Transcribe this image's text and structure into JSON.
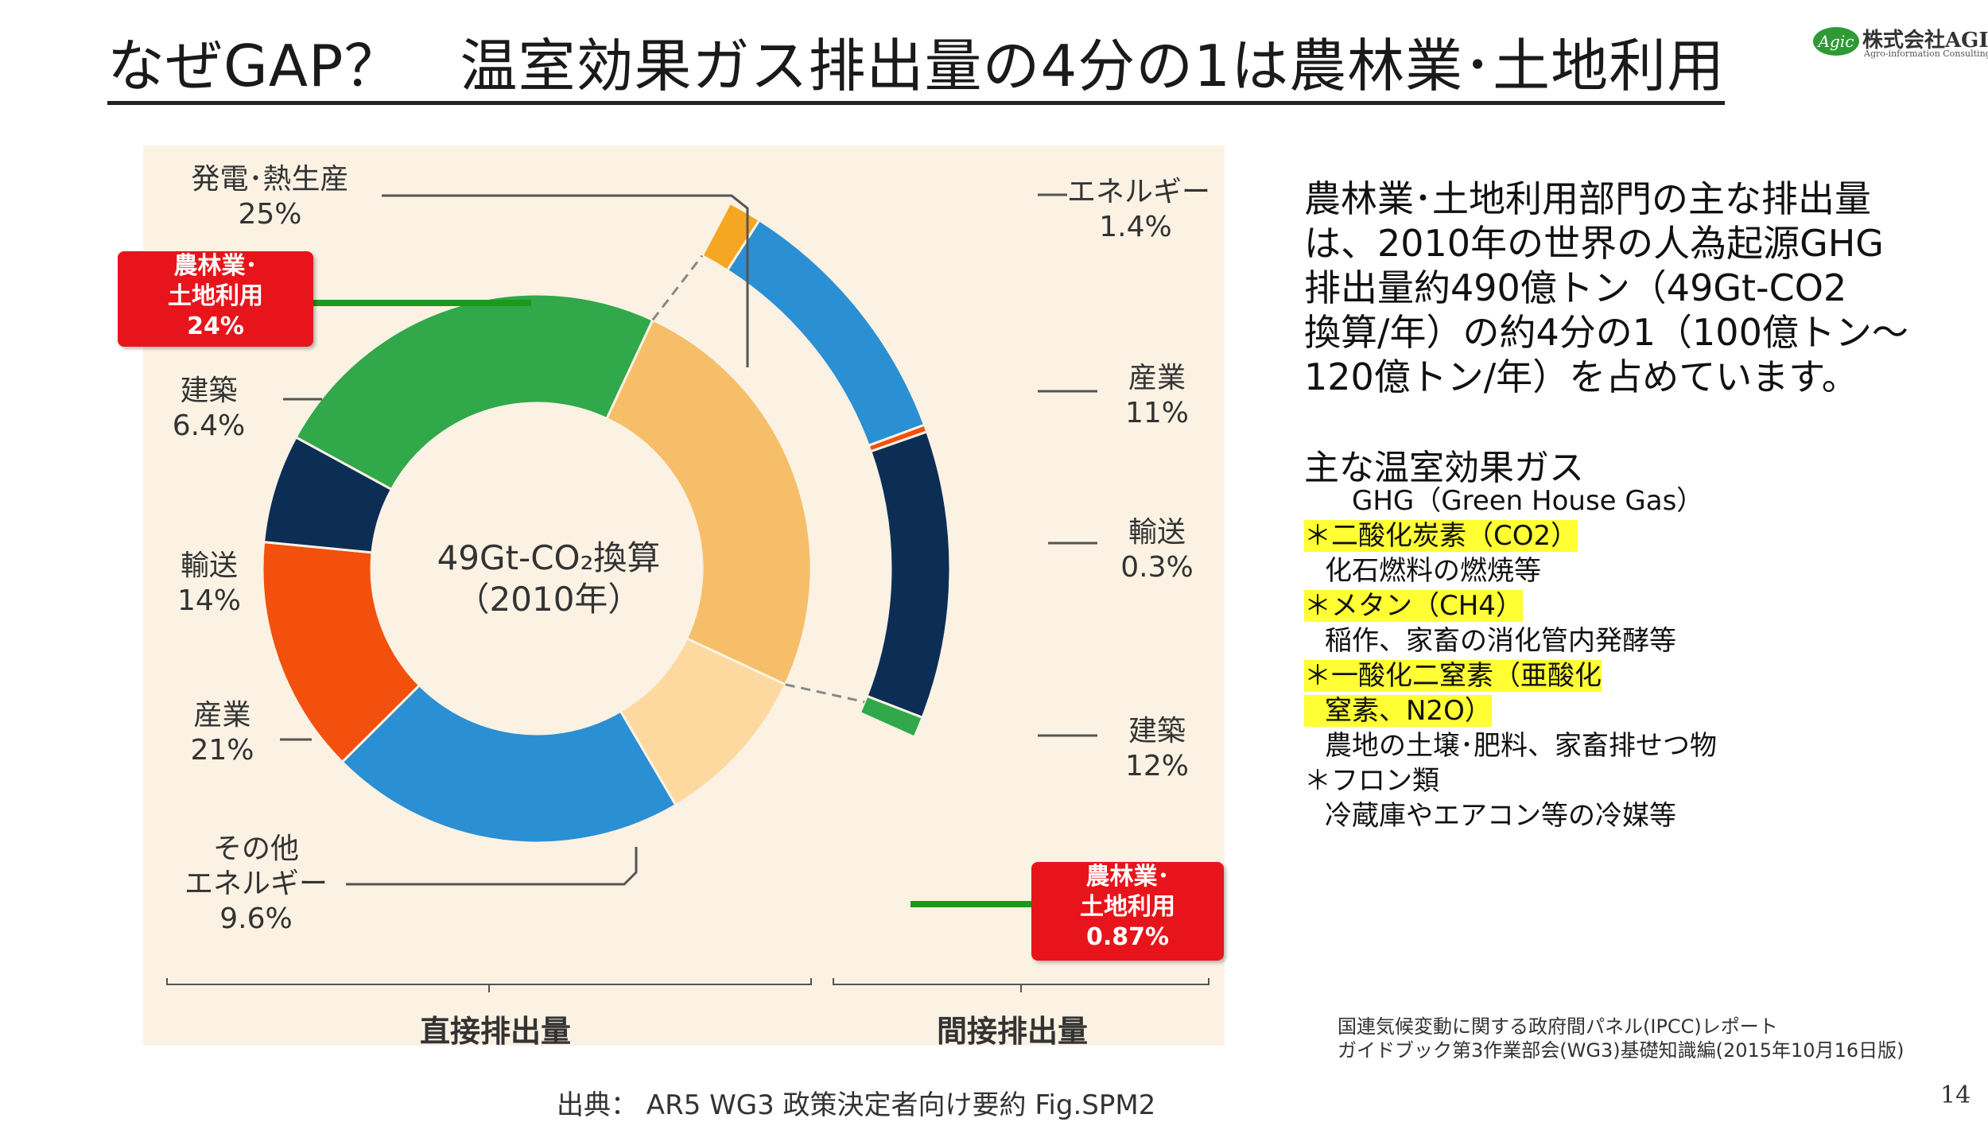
{
  "slide": {
    "title": "なぜGAP？　温室効果ガス排出量の4分の1は農林業･土地利用",
    "logo_name": "株式会社AGIC",
    "logo_badge": "Agic",
    "logo_subtitle": "Agro-information Consulting",
    "page_number": "14"
  },
  "chart_data": {
    "type": "pie",
    "center_label_line1": "49Gt-CO₂換算",
    "center_label_line2": "（2010年）",
    "direct_label": "直接排出量",
    "indirect_label": "間接排出量",
    "source": "出典：  AR5 WG3 政策決定者向け要約 Fig.SPM2",
    "direct": [
      {
        "name": "発電･熱生産",
        "display": "25%",
        "value": 25,
        "color": "#f6be68"
      },
      {
        "name": "その他エネルギー",
        "display": "9.6%",
        "value": 9.6,
        "color": "#fdd9a0"
      },
      {
        "name": "産業",
        "display": "21%",
        "value": 21,
        "color": "#2b8fd3"
      },
      {
        "name": "輸送",
        "display": "14%",
        "value": 14,
        "color": "#f2500c"
      },
      {
        "name": "建築",
        "display": "6.4%",
        "value": 6.4,
        "color": "#0c2e55"
      },
      {
        "name": "農林業･土地利用",
        "display": "24%",
        "value": 24,
        "color": "#31a84a"
      }
    ],
    "indirect": [
      {
        "name": "エネルギー",
        "display": "1.4%",
        "value": 1.4,
        "color": "#f5a623"
      },
      {
        "name": "産業",
        "display": "11%",
        "value": 11,
        "color": "#2b8fd3"
      },
      {
        "name": "輸送",
        "display": "0.3%",
        "value": 0.3,
        "color": "#f2500c"
      },
      {
        "name": "建築",
        "display": "12%",
        "value": 12,
        "color": "#0c2e55"
      },
      {
        "name": "農林業･土地利用",
        "display": "0.87%",
        "value": 0.87,
        "color": "#31a84a"
      }
    ]
  },
  "labels": {
    "direct_power": {
      "line1": "発電･熱生産",
      "line2": "25%"
    },
    "direct_agri": {
      "line1": "農林業･",
      "line2": "土地利用",
      "line3": "24%"
    },
    "direct_building": {
      "line1": "建築",
      "line2": "6.4%"
    },
    "direct_transport": {
      "line1": "輸送",
      "line2": "14%"
    },
    "direct_industry": {
      "line1": "産業",
      "line2": "21%"
    },
    "direct_other": {
      "line1": "その他",
      "line2": "エネルギー",
      "line3": "9.6%"
    },
    "indirect_energy": {
      "line1": "エネルギー",
      "line2": "1.4%"
    },
    "indirect_industry": {
      "line1": "産業",
      "line2": "11%"
    },
    "indirect_transport": {
      "line1": "輸送",
      "line2": "0.3%"
    },
    "indirect_building": {
      "line1": "建築",
      "line2": "12%"
    },
    "indirect_agri": {
      "line1": "農林業･",
      "line2": "土地利用",
      "line3": "0.87%"
    }
  },
  "description": {
    "line1": "農林業･土地利用部門の主な排出量",
    "line2": "は、2010年の世界の人為起源GHG",
    "line3": "排出量約490億トン（49Gt-CO2",
    "line4": "換算/年）の約4分の1（100億トン～",
    "line5": "120億トン/年）を占めています。"
  },
  "gases": {
    "title": "主な温室効果ガス",
    "subtitle": "GHG（Green House Gas）",
    "co2": "＊二酸化炭素（CO2）",
    "co2_note": "化石燃料の燃焼等",
    "ch4": "＊メタン（CH4）",
    "ch4_note": "稲作、家畜の消化管内発酵等",
    "n2o_line1": "＊一酸化二窒素（亜酸化",
    "n2o_line2": "窒素、N2O）",
    "n2o_note": "農地の土壌･肥料、家畜排せつ物",
    "cfc": "＊フロン類",
    "cfc_note": "冷蔵庫やエアコン等の冷媒等"
  },
  "reference": {
    "line1": "国連気候変動に関する政府間パネル(IPCC)レポート",
    "line2": "ガイドブック第3作業部会(WG3)基礎知識編(2015年10月16日版)"
  }
}
